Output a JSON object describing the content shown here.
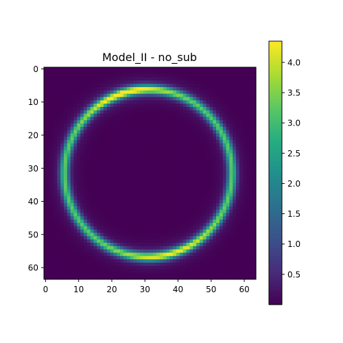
{
  "chart_data": {
    "type": "heatmap",
    "title": "Model_II - no_sub",
    "xlabel": "",
    "ylabel": "",
    "grid": false,
    "xlim": [
      -0.5,
      63.5
    ],
    "ylim": [
      63.5,
      -0.5
    ],
    "x_ticks": [
      0,
      10,
      20,
      30,
      40,
      50,
      60
    ],
    "y_ticks": [
      0,
      10,
      20,
      30,
      40,
      50,
      60
    ],
    "image": {
      "rows": 64,
      "cols": 64,
      "description_values": "Einstein ring: bright ring (~3.0-4.3) on a near-zero background",
      "ring_center": [
        31,
        31.5
      ],
      "ring_radius": 25.3,
      "peak_value": 4.3,
      "peak_location": [
        24,
        7
      ],
      "background_value": 0.0
    },
    "colorbar": {
      "colormap": "viridis",
      "vmin": 0.0,
      "vmax": 4.35,
      "ticks": [
        0.5,
        1.0,
        1.5,
        2.0,
        2.5,
        3.0,
        3.5,
        4.0
      ],
      "tick_labels": [
        "0.5",
        "1.0",
        "1.5",
        "2.0",
        "2.5",
        "3.0",
        "3.5",
        "4.0"
      ]
    }
  }
}
